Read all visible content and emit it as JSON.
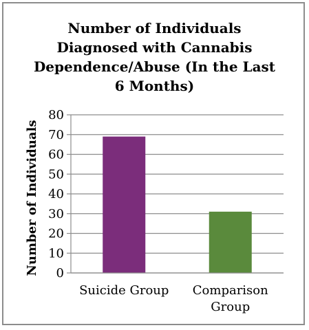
{
  "chart_data": {
    "type": "bar",
    "title": "Number of Individuals Diagnosed with Cannabis Dependence/Abuse (In the Last 6 Months)",
    "title_lines": [
      "Number of Individuals",
      "Diagnosed with Cannabis",
      "Dependence/Abuse (In the Last",
      "6 Months)"
    ],
    "categories": [
      "Suicide Group",
      "Comparison Group"
    ],
    "category_lines": [
      [
        "Suicide Group"
      ],
      [
        "Comparison",
        "Group"
      ]
    ],
    "values": [
      69,
      31
    ],
    "bar_colors": [
      "#7b2d7b",
      "#5a8a3c"
    ],
    "xlabel": "",
    "ylabel": "Number of Individuals",
    "ylim": [
      0,
      80
    ],
    "yticks": [
      0,
      10,
      20,
      30,
      40,
      50,
      60,
      70,
      80
    ],
    "grid": true,
    "legend": "none"
  }
}
